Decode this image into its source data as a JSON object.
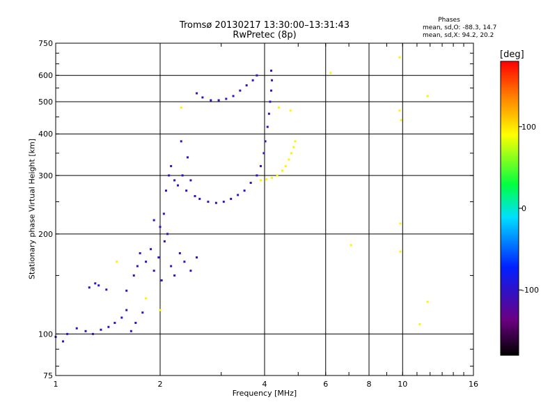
{
  "chart_data": {
    "type": "scatter",
    "title": "Tromsø 20130217 13:30:00–13:31:43",
    "subtitle": "RwPretec (8p)",
    "xlabel": "Frequency [MHz]",
    "ylabel": "Stationary phase Virtual Height [km]",
    "x_scale": "log",
    "y_scale": "log",
    "xlim": [
      1,
      16
    ],
    "ylim": [
      75,
      750
    ],
    "x_ticks": [
      1,
      2,
      4,
      6,
      8,
      10,
      16
    ],
    "x_tick_labels": [
      "1",
      "2",
      "4",
      "6",
      "8",
      "10",
      "16"
    ],
    "y_ticks": [
      75,
      100,
      200,
      300,
      400,
      500,
      600,
      750
    ],
    "y_tick_labels": [
      "75",
      "100",
      "200",
      "300",
      "400",
      "500",
      "600",
      "750"
    ],
    "grid": true,
    "phase_stats": {
      "title": "Phases",
      "o_mode": "mean, sd,O: -88.3, 14.7",
      "x_mode": "mean, sd,X:  94.2, 20.2"
    },
    "colorbar": {
      "unit": "[deg]",
      "range": [
        -180,
        180
      ],
      "ticks": [
        100,
        0,
        -100
      ],
      "tick_labels": [
        "100",
        "0",
        "-100"
      ],
      "colormap": "rainbow (black→purple→blue→cyan→green→yellow→red)"
    },
    "series": [
      {
        "mode": "O",
        "phase_deg": -100,
        "points": [
          [
            1.0,
            98
          ],
          [
            1.05,
            95
          ],
          [
            1.08,
            100
          ],
          [
            1.15,
            104
          ],
          [
            1.22,
            102
          ],
          [
            1.28,
            100
          ],
          [
            1.35,
            103
          ],
          [
            1.42,
            105
          ],
          [
            1.48,
            108
          ],
          [
            1.25,
            138
          ],
          [
            1.3,
            142
          ],
          [
            1.33,
            140
          ],
          [
            1.4,
            136
          ],
          [
            1.55,
            112
          ],
          [
            1.6,
            118
          ],
          [
            1.65,
            102
          ],
          [
            1.7,
            108
          ],
          [
            1.78,
            116
          ],
          [
            1.6,
            135
          ],
          [
            1.68,
            150
          ],
          [
            1.72,
            160
          ],
          [
            1.75,
            175
          ],
          [
            1.82,
            165
          ],
          [
            1.88,
            180
          ],
          [
            1.92,
            155
          ],
          [
            1.98,
            170
          ],
          [
            2.02,
            145
          ],
          [
            2.06,
            190
          ],
          [
            2.1,
            200
          ],
          [
            2.15,
            160
          ],
          [
            2.2,
            150
          ],
          [
            2.28,
            175
          ],
          [
            2.35,
            165
          ],
          [
            2.45,
            155
          ],
          [
            2.55,
            170
          ],
          [
            2.05,
            230
          ],
          [
            2.08,
            270
          ],
          [
            2.12,
            300
          ],
          [
            2.15,
            320
          ],
          [
            2.2,
            290
          ],
          [
            2.25,
            280
          ],
          [
            2.32,
            300
          ],
          [
            2.38,
            270
          ],
          [
            2.45,
            290
          ],
          [
            2.52,
            260
          ],
          [
            2.6,
            255
          ],
          [
            2.75,
            250
          ],
          [
            2.9,
            248
          ],
          [
            3.05,
            250
          ],
          [
            3.2,
            255
          ],
          [
            3.35,
            262
          ],
          [
            3.5,
            270
          ],
          [
            3.65,
            285
          ],
          [
            3.8,
            300
          ],
          [
            3.9,
            320
          ],
          [
            3.98,
            350
          ],
          [
            4.02,
            380
          ],
          [
            4.08,
            420
          ],
          [
            4.12,
            460
          ],
          [
            4.15,
            500
          ],
          [
            4.18,
            540
          ],
          [
            4.2,
            580
          ],
          [
            4.18,
            620
          ],
          [
            2.55,
            530
          ],
          [
            2.65,
            515
          ],
          [
            2.8,
            505
          ],
          [
            2.95,
            505
          ],
          [
            3.1,
            510
          ],
          [
            3.25,
            520
          ],
          [
            3.4,
            540
          ],
          [
            3.55,
            560
          ],
          [
            3.7,
            580
          ],
          [
            3.8,
            600
          ],
          [
            2.3,
            380
          ],
          [
            2.4,
            340
          ],
          [
            1.92,
            220
          ],
          [
            2.0,
            210
          ]
        ]
      },
      {
        "mode": "X",
        "phase_deg": 94,
        "points": [
          [
            3.9,
            290
          ],
          [
            4.05,
            292
          ],
          [
            4.2,
            295
          ],
          [
            4.35,
            300
          ],
          [
            4.5,
            310
          ],
          [
            4.6,
            320
          ],
          [
            4.7,
            335
          ],
          [
            4.78,
            350
          ],
          [
            4.85,
            365
          ],
          [
            4.9,
            380
          ],
          [
            4.75,
            470
          ],
          [
            4.4,
            480
          ],
          [
            6.2,
            610
          ],
          [
            7.1,
            185
          ],
          [
            9.8,
            680
          ],
          [
            9.8,
            470
          ],
          [
            9.9,
            440
          ],
          [
            9.85,
            215
          ],
          [
            9.85,
            177
          ],
          [
            11.8,
            520
          ],
          [
            11.8,
            125
          ],
          [
            11.2,
            107
          ],
          [
            1.5,
            165
          ],
          [
            1.82,
            128
          ],
          [
            2.0,
            118
          ],
          [
            2.3,
            480
          ]
        ]
      }
    ]
  }
}
